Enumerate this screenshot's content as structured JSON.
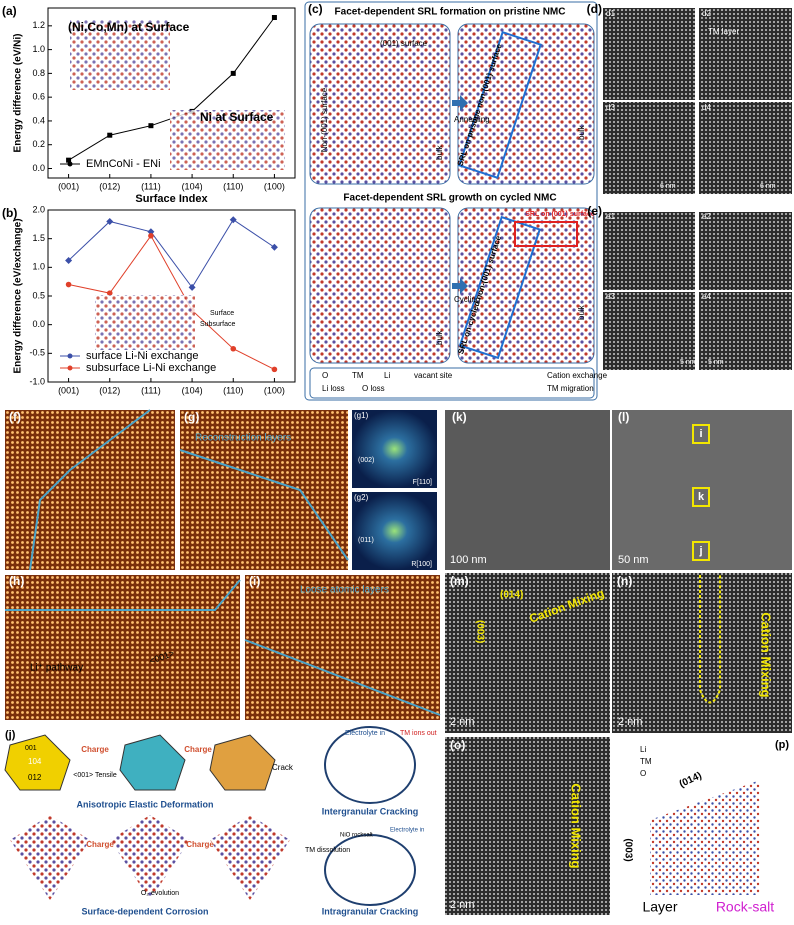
{
  "chart_data": [
    {
      "type": "line",
      "label": "(a)",
      "categories": [
        "(001)",
        "(012)",
        "(111)",
        "(104)",
        "(110)",
        "(100)"
      ],
      "series": [
        {
          "name": "EMnCoNi - ENi",
          "color": "#000000",
          "marker": "square",
          "values": [
            0.07,
            0.28,
            0.36,
            0.48,
            0.8,
            1.27
          ]
        }
      ],
      "ylim": [
        -0.08,
        1.35
      ],
      "yticks": [
        {
          "value": 0,
          "label": "0.0"
        },
        0.2,
        0.4,
        0.6,
        0.8,
        {
          "value": 1,
          "label": "1.0"
        },
        1.2
      ],
      "x_label": "Surface Index",
      "y_label": "Energy difference (eV/Ni)",
      "annotations": [
        "(Ni,Co,Mn) at Surface",
        "Ni at Surface"
      ]
    },
    {
      "type": "line",
      "label": "(b)",
      "categories": [
        "(001)",
        "(012)",
        "(111)",
        "(104)",
        "(110)",
        "(100)"
      ],
      "series": [
        {
          "name": "surface Li-Ni exchange",
          "color": "#3b4fa8",
          "marker": "diamond",
          "values": [
            1.12,
            1.8,
            1.62,
            0.65,
            1.83,
            1.35
          ]
        },
        {
          "name": "subsurface Li-Ni exchange",
          "color": "#e0402a",
          "marker": "circle",
          "values": [
            0.7,
            0.55,
            1.55,
            0.25,
            -0.42,
            -0.78
          ]
        }
      ],
      "ylim": [
        -1.0,
        2.0
      ],
      "yticks": [
        {
          "value": -1,
          "label": "-1.0"
        },
        -0.5,
        {
          "value": 0,
          "label": "0.0"
        },
        0.5,
        {
          "value": 1,
          "label": "1.0"
        },
        1.5,
        {
          "value": 2,
          "label": "2.0"
        }
      ],
      "y_label": "Energy difference (eV/exchange)",
      "annotations": [
        "Surface",
        "Subsurface"
      ]
    }
  ],
  "panels": {
    "c": {
      "label": "(c)",
      "title1": "Facet-dependent SRL formation on pristine NMC",
      "title2": "Facet-dependent SRL growth on cycled NMC",
      "surface001": "(001) surface",
      "non001": "Non-(001) surface",
      "annealing": "Annealing",
      "cycling": "Cycling",
      "bulk": "bulk",
      "srl_pristine": "SRL on pristine non-(001) surface",
      "srl_cycled": "SRL on cycled non-(001) surface",
      "srl_001": "SRL on (001) surface",
      "legend": [
        "O",
        "TM",
        "Li",
        "vacant site",
        "Cation exchange",
        "Li loss",
        "O loss",
        "TM migration"
      ]
    },
    "d": {
      "label": "(d)",
      "subs": [
        "d1",
        "d2",
        "d3",
        "d4"
      ],
      "tm": "TM layer",
      "scale": "6 nm"
    },
    "e": {
      "label": "(e)",
      "subs": [
        "e1",
        "e2",
        "e3",
        "e4"
      ],
      "scale": "5 nm"
    },
    "f": {
      "label": "(f)"
    },
    "g": {
      "label": "(g)",
      "recon": "Reconstruction layers",
      "g1": "(g1)",
      "g2": "(g2)",
      "f110": "F[110]",
      "r100": "R[100]",
      "s002": "(002)",
      "s011": "(011)"
    },
    "h": {
      "label": "(h)",
      "pathway": "Li⁺ pathway",
      "dir": "<001>"
    },
    "i": {
      "label": "(i)",
      "loose": "Loose atomic layers"
    },
    "j": {
      "label": "(j)",
      "charge": "Charge",
      "tensile": "<001> Tensile",
      "crack": "Crack",
      "aniso": "Anisotropic Elastic Deformation",
      "corrosion": "Surface-dependent Corrosion",
      "o2": "O₂ evolution",
      "tmdis": "TM dissolution",
      "inter": "Intergranular Cracking",
      "intra": "Intragranular Cracking",
      "elec": "Electrolyte in",
      "tmout": "TM ions out",
      "rocksalt": "NiO rocksalt",
      "f104": "104",
      "f012": "012",
      "f001": "001"
    },
    "k": {
      "label": "(k)",
      "scale": "100 nm"
    },
    "l": {
      "label": "(l)",
      "scale": "50 nm",
      "boxes": [
        "i",
        "k",
        "j"
      ]
    },
    "m": {
      "label": "(m)",
      "mix": "Cation Mixing",
      "d014": "(014)",
      "d003": "(003)",
      "scale": "2 nm"
    },
    "n": {
      "label": "(n)"
    },
    "o": {
      "label": "(o)"
    },
    "p": {
      "label": "(p)",
      "li": "Li",
      "tm": "TM",
      "o": "O",
      "layer": "Layer",
      "rocksalt": "Rock-salt"
    }
  }
}
